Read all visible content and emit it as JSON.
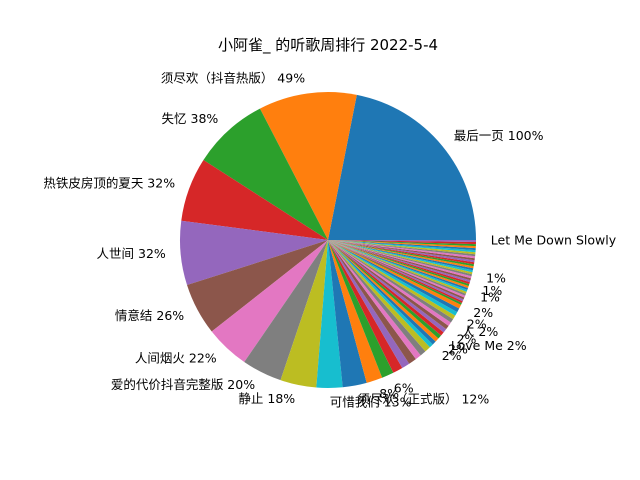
{
  "chart_data": {
    "type": "pie",
    "title": "小阿雀_ 的听歌周排行 2022-5-4",
    "start_angle": 0,
    "direction": "counterclockwise",
    "slices": [
      {
        "label": "最后一页 100%",
        "value": 100,
        "color": "#1f77b4"
      },
      {
        "label": "须尽欢（抖音热版） 49%",
        "value": 49,
        "color": "#ff7f0e"
      },
      {
        "label": "失忆 38%",
        "value": 38,
        "color": "#2ca02c"
      },
      {
        "label": "热铁皮房顶的夏天 32%",
        "value": 32,
        "color": "#d62728"
      },
      {
        "label": "人世间 32%",
        "value": 32,
        "color": "#9467bd"
      },
      {
        "label": "情意结 26%",
        "value": 26,
        "color": "#8c564b"
      },
      {
        "label": "人间烟火 22%",
        "value": 22,
        "color": "#e377c2"
      },
      {
        "label": "爱的代价抖音完整版 20%",
        "value": 20,
        "color": "#7f7f7f"
      },
      {
        "label": "静止 18%",
        "value": 18,
        "color": "#bcbd22"
      },
      {
        "label": "可惜我们 13%",
        "value": 13,
        "color": "#17becf"
      },
      {
        "label": "须尽欢（正式版） 12%",
        "value": 12,
        "color": "#1f77b4"
      },
      {
        "label": "8%",
        "value": 8,
        "color": "#ff7f0e"
      },
      {
        "label": "6%",
        "value": 6,
        "color": "#2ca02c"
      },
      {
        "label": "",
        "value": 5,
        "color": "#d62728"
      },
      {
        "label": "",
        "value": 4,
        "color": "#9467bd"
      },
      {
        "label": "",
        "value": 4,
        "color": "#8c564b"
      },
      {
        "label": "",
        "value": 3,
        "color": "#e377c2"
      },
      {
        "label": "",
        "value": 3,
        "color": "#7f7f7f"
      },
      {
        "label": "",
        "value": 3,
        "color": "#bcbd22"
      },
      {
        "label": "2%",
        "value": 2,
        "color": "#17becf"
      },
      {
        "label": "",
        "value": 2,
        "color": "#1f77b4"
      },
      {
        "label": "2%",
        "value": 2,
        "color": "#ff7f0e"
      },
      {
        "label": "Love Me 2%",
        "value": 2,
        "color": "#2ca02c"
      },
      {
        "label": "",
        "value": 2,
        "color": "#d62728"
      },
      {
        "label": "2%",
        "value": 2,
        "color": "#9467bd"
      },
      {
        "label": "",
        "value": 2,
        "color": "#8c564b"
      },
      {
        "label": "人 2%",
        "value": 2,
        "color": "#e377c2"
      },
      {
        "label": "",
        "value": 2,
        "color": "#7f7f7f"
      },
      {
        "label": "2%",
        "value": 2,
        "color": "#bcbd22"
      },
      {
        "label": "",
        "value": 2,
        "color": "#17becf"
      },
      {
        "label": "",
        "value": 2,
        "color": "#1f77b4"
      },
      {
        "label": "2%",
        "value": 2,
        "color": "#ff7f0e"
      },
      {
        "label": "",
        "value": 1,
        "color": "#2ca02c"
      },
      {
        "label": "",
        "value": 1,
        "color": "#d62728"
      },
      {
        "label": "",
        "value": 1,
        "color": "#9467bd"
      },
      {
        "label": "",
        "value": 1,
        "color": "#8c564b"
      },
      {
        "label": "",
        "value": 1,
        "color": "#e377c2"
      },
      {
        "label": "",
        "value": 1,
        "color": "#7f7f7f"
      },
      {
        "label": "1%",
        "value": 1,
        "color": "#bcbd22"
      },
      {
        "label": "",
        "value": 1,
        "color": "#17becf"
      },
      {
        "label": "",
        "value": 1,
        "color": "#1f77b4"
      },
      {
        "label": "1%",
        "value": 1,
        "color": "#ff7f0e"
      },
      {
        "label": "",
        "value": 1,
        "color": "#2ca02c"
      },
      {
        "label": "",
        "value": 1,
        "color": "#d62728"
      },
      {
        "label": "",
        "value": 1,
        "color": "#9467bd"
      },
      {
        "label": "",
        "value": 1,
        "color": "#8c564b"
      },
      {
        "label": "",
        "value": 1,
        "color": "#e377c2"
      },
      {
        "label": "1%",
        "value": 1,
        "color": "#7f7f7f"
      },
      {
        "label": "",
        "value": 1,
        "color": "#bcbd22"
      },
      {
        "label": "",
        "value": 1,
        "color": "#17becf"
      },
      {
        "label": "",
        "value": 1,
        "color": "#1f77b4"
      },
      {
        "label": "",
        "value": 1,
        "color": "#ff7f0e"
      },
      {
        "label": "",
        "value": 1,
        "color": "#2ca02c"
      },
      {
        "label": "",
        "value": 1,
        "color": "#d62728"
      },
      {
        "label": "",
        "value": 1,
        "color": "#9467bd"
      },
      {
        "label": "",
        "value": 1,
        "color": "#8c564b"
      },
      {
        "label": "",
        "value": 1,
        "color": "#e377c2"
      },
      {
        "label": "",
        "value": 1,
        "color": "#7f7f7f"
      },
      {
        "label": "",
        "value": 1,
        "color": "#bcbd22"
      },
      {
        "label": "",
        "value": 1,
        "color": "#17becf"
      },
      {
        "label": "",
        "value": 1,
        "color": "#1f77b4"
      },
      {
        "label": "",
        "value": 1,
        "color": "#ff7f0e"
      },
      {
        "label": "",
        "value": 1,
        "color": "#2ca02c"
      },
      {
        "label": "",
        "value": 1,
        "color": "#d62728"
      },
      {
        "label": "Let Me Down Slowly",
        "value": 1,
        "color": "#9467bd"
      }
    ]
  }
}
